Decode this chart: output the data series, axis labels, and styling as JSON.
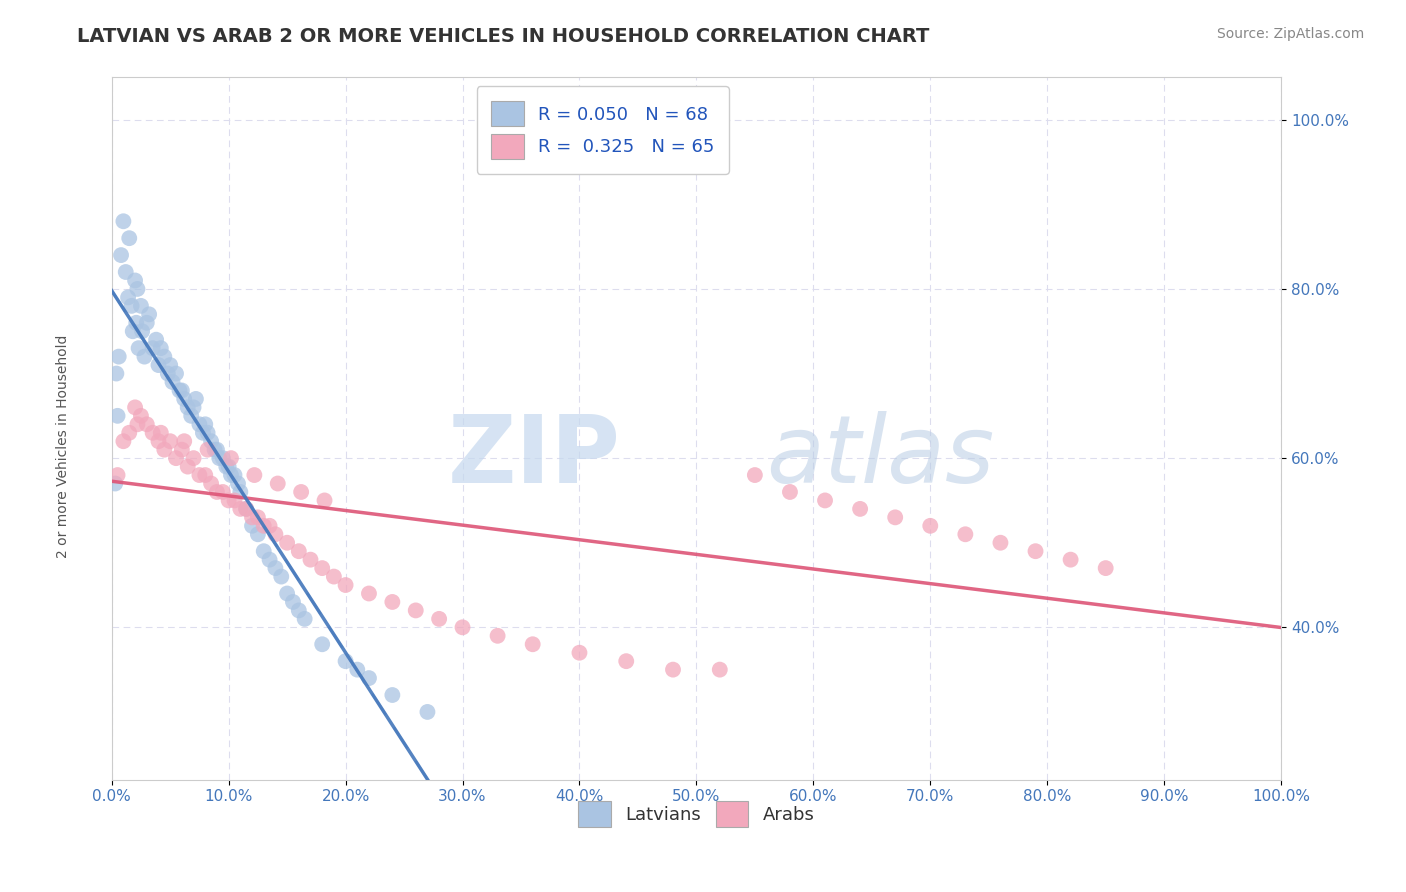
{
  "title": "LATVIAN VS ARAB 2 OR MORE VEHICLES IN HOUSEHOLD CORRELATION CHART",
  "source_text": "Source: ZipAtlas.com",
  "ylabel": "2 or more Vehicles in Household",
  "latvian_R": 0.05,
  "latvian_N": 68,
  "arab_R": 0.325,
  "arab_N": 65,
  "latvian_color": "#aac4e2",
  "arab_color": "#f2a8bc",
  "latvian_line_color": "#4477bb",
  "arab_line_color": "#dd5577",
  "latvian_dash_color": "#88aad4",
  "legend_R_color": "#2255bb",
  "background_color": "#ffffff",
  "xlim": [
    0,
    100
  ],
  "ylim": [
    22,
    105
  ],
  "xticks": [
    0,
    10,
    20,
    30,
    40,
    50,
    60,
    70,
    80,
    90,
    100
  ],
  "yticks": [
    40,
    60,
    80,
    100
  ],
  "xticklabels": [
    "0.0%",
    "10.0%",
    "20.0%",
    "30.0%",
    "40.0%",
    "50.0%",
    "60.0%",
    "70.0%",
    "80.0%",
    "90.0%",
    "100.0%"
  ],
  "yticklabels": [
    "40.0%",
    "60.0%",
    "80.0%",
    "100.0%"
  ],
  "watermark_zip": "ZIP",
  "watermark_atlas": "atlas",
  "title_fontsize": 14,
  "axis_label_fontsize": 10,
  "tick_fontsize": 11,
  "legend_fontsize": 13,
  "lat_x": [
    0.3,
    0.4,
    0.5,
    0.6,
    0.8,
    1.0,
    1.2,
    1.4,
    1.5,
    1.7,
    1.8,
    2.0,
    2.1,
    2.2,
    2.3,
    2.5,
    2.6,
    2.8,
    3.0,
    3.2,
    3.5,
    3.8,
    4.0,
    4.2,
    4.5,
    4.8,
    5.0,
    5.2,
    5.5,
    5.8,
    6.0,
    6.2,
    6.5,
    6.8,
    7.0,
    7.2,
    7.5,
    7.8,
    8.0,
    8.2,
    8.5,
    8.8,
    9.0,
    9.2,
    9.5,
    9.8,
    10.0,
    10.2,
    10.5,
    10.8,
    11.0,
    11.5,
    12.0,
    12.5,
    13.0,
    13.5,
    14.0,
    14.5,
    15.0,
    15.5,
    16.0,
    16.5,
    18.0,
    20.0,
    21.0,
    22.0,
    24.0,
    27.0
  ],
  "lat_y": [
    57,
    70,
    65,
    72,
    84,
    88,
    82,
    79,
    86,
    78,
    75,
    81,
    76,
    80,
    73,
    78,
    75,
    72,
    76,
    77,
    73,
    74,
    71,
    73,
    72,
    70,
    71,
    69,
    70,
    68,
    68,
    67,
    66,
    65,
    66,
    67,
    64,
    63,
    64,
    63,
    62,
    61,
    61,
    60,
    60,
    59,
    59,
    58,
    58,
    57,
    56,
    54,
    52,
    51,
    49,
    48,
    47,
    46,
    44,
    43,
    42,
    41,
    38,
    36,
    35,
    34,
    32,
    30
  ],
  "arab_x": [
    0.5,
    1.0,
    1.5,
    2.0,
    2.5,
    3.0,
    3.5,
    4.0,
    4.5,
    5.0,
    5.5,
    6.0,
    6.5,
    7.0,
    7.5,
    8.0,
    8.5,
    9.0,
    9.5,
    10.0,
    10.5,
    11.0,
    11.5,
    12.0,
    12.5,
    13.0,
    13.5,
    14.0,
    15.0,
    16.0,
    17.0,
    18.0,
    19.0,
    20.0,
    22.0,
    24.0,
    26.0,
    28.0,
    30.0,
    33.0,
    36.0,
    40.0,
    44.0,
    48.0,
    52.0,
    55.0,
    58.0,
    61.0,
    64.0,
    67.0,
    70.0,
    73.0,
    76.0,
    79.0,
    82.0,
    85.0,
    2.2,
    4.2,
    6.2,
    8.2,
    10.2,
    12.2,
    14.2,
    16.2,
    18.2
  ],
  "arab_y": [
    58,
    62,
    63,
    66,
    65,
    64,
    63,
    62,
    61,
    62,
    60,
    61,
    59,
    60,
    58,
    58,
    57,
    56,
    56,
    55,
    55,
    54,
    54,
    53,
    53,
    52,
    52,
    51,
    50,
    49,
    48,
    47,
    46,
    45,
    44,
    43,
    42,
    41,
    40,
    39,
    38,
    37,
    36,
    35,
    35,
    58,
    56,
    55,
    54,
    53,
    52,
    51,
    50,
    49,
    48,
    47,
    64,
    63,
    62,
    61,
    60,
    58,
    57,
    56,
    55
  ]
}
